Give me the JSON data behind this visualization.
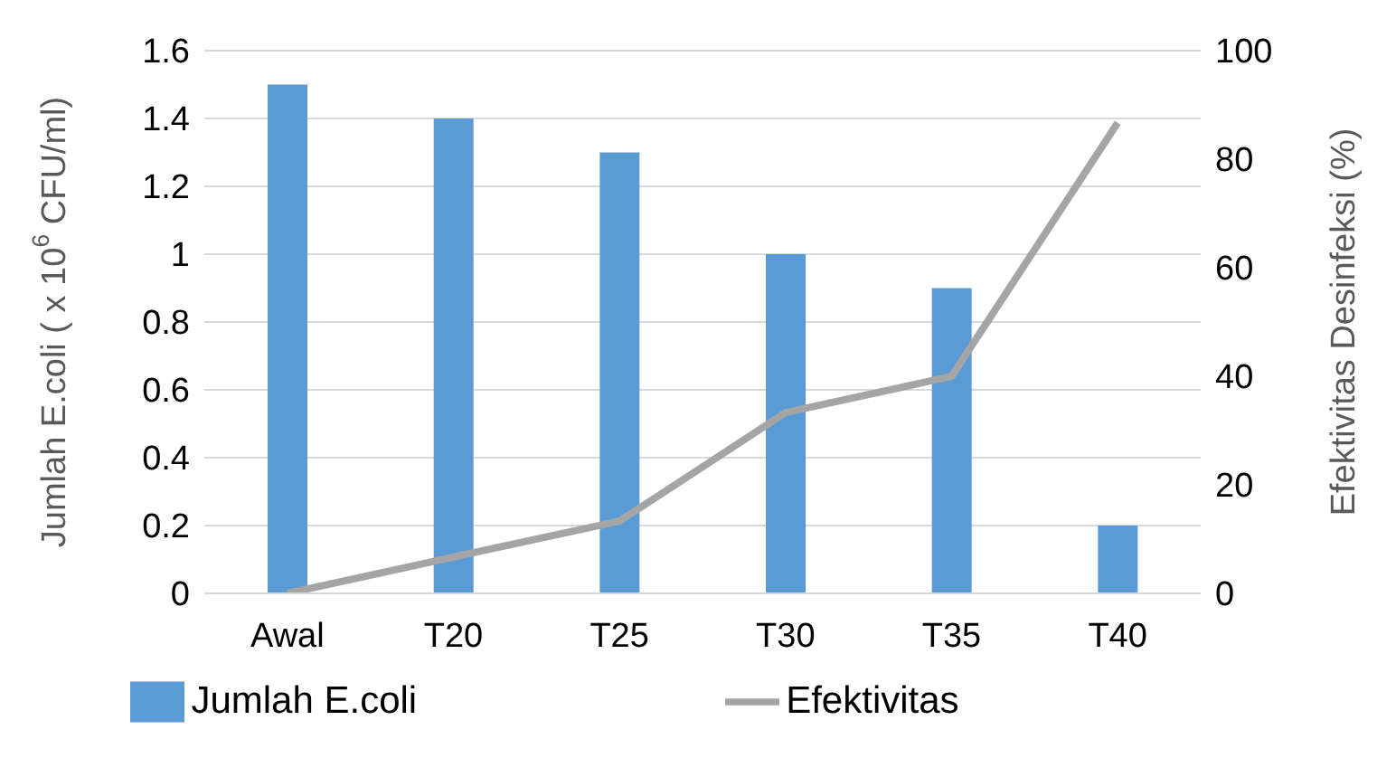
{
  "chart_data": {
    "type": "bar",
    "categories": [
      "Awal",
      "T20",
      "T25",
      "T30",
      "T35",
      "T40"
    ],
    "series": [
      {
        "name": "Jumlah E.coli",
        "color": "#5b9bd5",
        "values": [
          1.5,
          1.4,
          1.3,
          1.0,
          0.9,
          0.2
        ]
      },
      {
        "name": "Efektivitas",
        "type": "line",
        "axis": "y2",
        "color": "#a5a5a5",
        "values": [
          0,
          6.7,
          13.3,
          33.3,
          40,
          86.7
        ]
      }
    ],
    "ylabel": "Jumlah E.coli ( x 10$^{6}$ CFU/ml)",
    "y2label": "Efektivitas Desinfeksi (%)",
    "ylim": [
      0,
      1.6
    ],
    "yticks": [
      0,
      0.2,
      0.4,
      0.6,
      0.8,
      1,
      1.2,
      1.4,
      1.6
    ],
    "y2lim": [
      0,
      100
    ],
    "y2ticks": [
      0,
      20,
      40,
      60,
      80,
      100
    ],
    "grid": "y",
    "legend": "bottom",
    "marker": "none",
    "line_style": "solid"
  }
}
